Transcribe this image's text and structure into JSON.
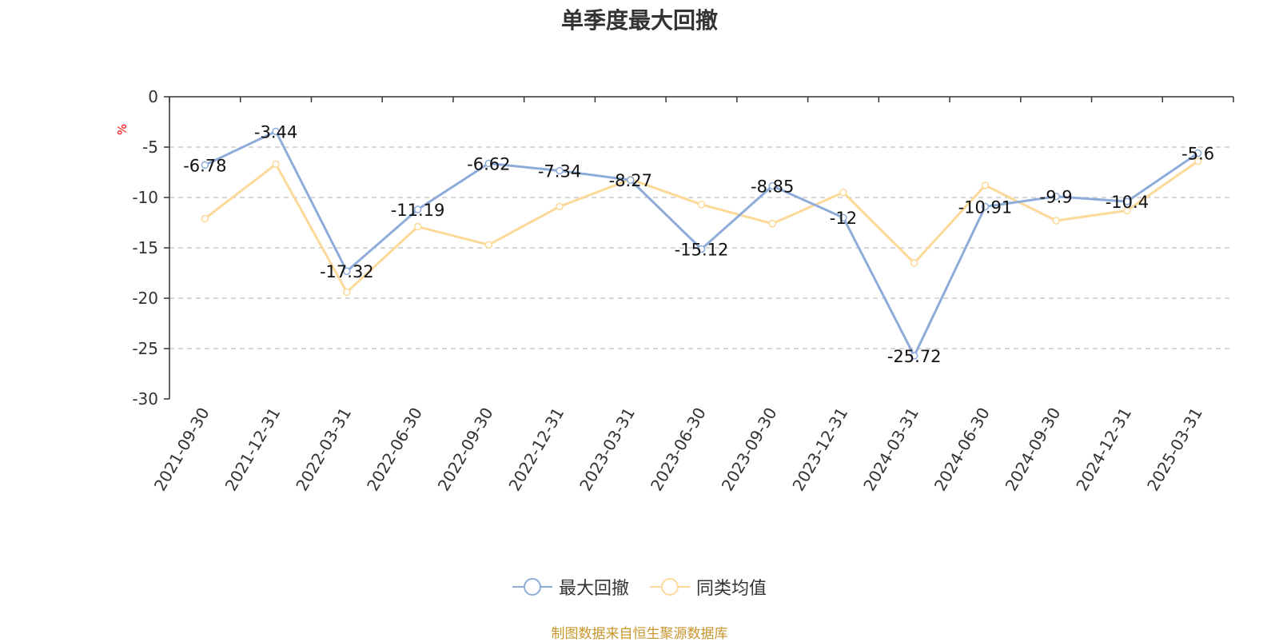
{
  "title": "单季度最大回撤",
  "source_note": "制图数据来自恒生聚源数据库",
  "colors": {
    "series1": "#8eacd9",
    "series2": "#fcd998",
    "unit": "#ff0000",
    "axis": "#333333",
    "grid": "#cccccc",
    "source": "#c8962d"
  },
  "chart_data": {
    "type": "line",
    "title": "单季度最大回撤",
    "ylabel": "%",
    "xlabel": "",
    "ylim": [
      -30,
      0
    ],
    "yticks": [
      0,
      -5,
      -10,
      -15,
      -20,
      -25,
      -30
    ],
    "grid": true,
    "legend_position": "bottom-center",
    "categories": [
      "2021-09-30",
      "2021-12-31",
      "2022-03-31",
      "2022-06-30",
      "2022-09-30",
      "2022-12-31",
      "2023-03-31",
      "2023-06-30",
      "2023-09-30",
      "2023-12-31",
      "2024-03-31",
      "2024-06-30",
      "2024-09-30",
      "2024-12-31",
      "2025-03-31"
    ],
    "series": [
      {
        "name": "最大回撤",
        "values": [
          -6.78,
          -3.44,
          -17.32,
          -11.19,
          -6.62,
          -7.34,
          -8.27,
          -15.12,
          -8.85,
          -12,
          -25.72,
          -10.91,
          -9.9,
          -10.4,
          -5.6
        ],
        "labels": [
          "-6.78",
          "-3.44",
          "-17.32",
          "-11.19",
          "-6.62",
          "-7.34",
          "-8.27",
          "-15.12",
          "-8.85",
          "-12",
          "-25.72",
          "-10.91",
          "-9.9",
          "-10.4",
          "-5.6"
        ]
      },
      {
        "name": "同类均值",
        "values": [
          -12.1,
          -6.7,
          -19.4,
          -12.9,
          -14.7,
          -10.9,
          -8.2,
          -10.7,
          -12.6,
          -9.5,
          -16.5,
          -8.8,
          -12.3,
          -11.3,
          -6.4
        ]
      }
    ]
  }
}
